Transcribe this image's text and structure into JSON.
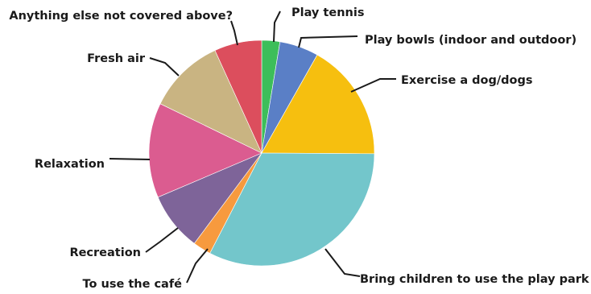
{
  "chart_data": {
    "type": "pie",
    "title": "",
    "legend": "none",
    "start_angle_deg": 0,
    "direction": "clockwise",
    "slices": [
      {
        "label": "Play tennis",
        "value": 2.6,
        "color": "#3DBE5A"
      },
      {
        "label": "Play bowls (indoor and outdoor)",
        "value": 5.6,
        "color": "#5A7FC6"
      },
      {
        "label": "Exercise a dog/dogs",
        "value": 16.9,
        "color": "#F6BF0F"
      },
      {
        "label": "Bring children to use the play park",
        "value": 32.5,
        "color": "#73C6CB"
      },
      {
        "label": "To use the café",
        "value": 2.6,
        "color": "#F79A3E"
      },
      {
        "label": "Recreation",
        "value": 8.4,
        "color": "#7E6499"
      },
      {
        "label": "Relaxation",
        "value": 13.6,
        "color": "#DB5C90"
      },
      {
        "label": "Fresh air",
        "value": 11.0,
        "color": "#C9B482"
      },
      {
        "label": "Anything else not covered above?",
        "value": 6.8,
        "color": "#DC4E5D"
      }
    ]
  }
}
